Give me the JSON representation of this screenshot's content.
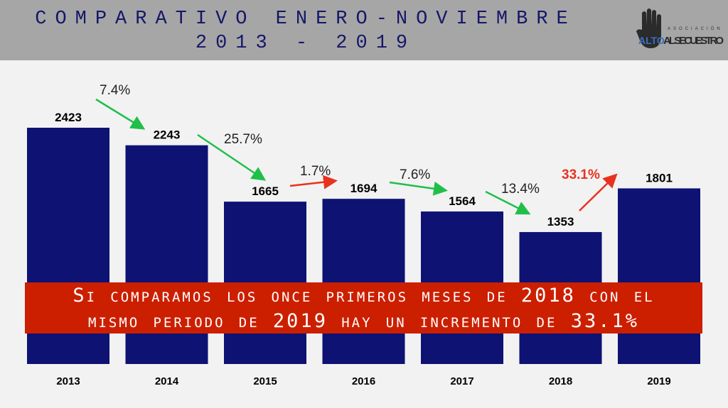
{
  "header": {
    "title_line1": "COMPARATIVO ENERO-NOVIEMBRE",
    "title_line2": "2013 - 2019",
    "logo_text_top": "ASOCIACIÓN",
    "logo_text_alto": "ALTO",
    "logo_text_main": "AL SECUESTRO"
  },
  "banner": {
    "line1": "Si comparamos los once primeros meses de 2018 con el",
    "line2": "mismo periodo de 2019 hay un incremento de 33.1%"
  },
  "colors": {
    "bar": "#0d1273",
    "increase": "#e8321e",
    "decrease": "#1fbf4a",
    "banner": "#cc1f00"
  },
  "chart_data": {
    "type": "bar",
    "categories": [
      "2013",
      "2014",
      "2015",
      "2016",
      "2017",
      "2018",
      "2019"
    ],
    "values": [
      2423,
      2243,
      1665,
      1694,
      1564,
      1353,
      1801
    ],
    "ylim": [
      0,
      2423
    ],
    "grid": false,
    "changes": [
      {
        "label": "7.4%",
        "direction": "down"
      },
      {
        "label": "25.7%",
        "direction": "down"
      },
      {
        "label": "1.7%",
        "direction": "up"
      },
      {
        "label": "7.6%",
        "direction": "down"
      },
      {
        "label": "13.4%",
        "direction": "down"
      },
      {
        "label": "33.1%",
        "direction": "up"
      }
    ]
  }
}
